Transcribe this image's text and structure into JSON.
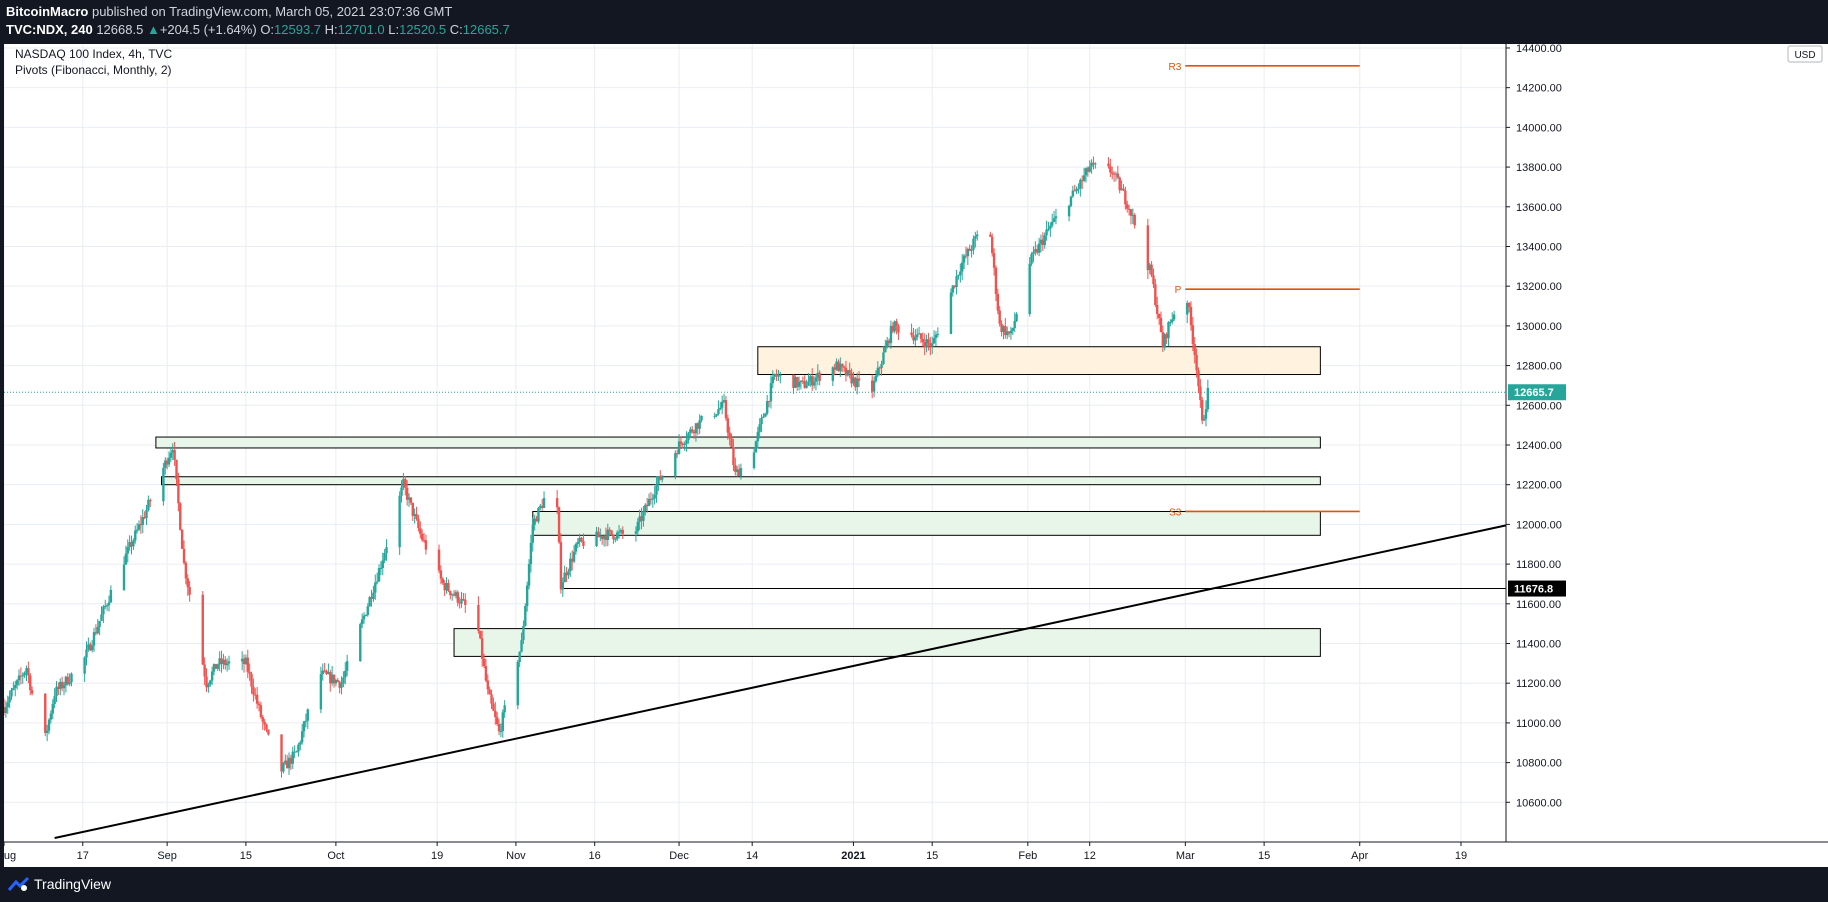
{
  "header": {
    "author": "BitcoinMacro",
    "published_text": "published on TradingView.com, March 05, 2021 23:07:36 GMT",
    "symbol": "TVC:NDX, 240",
    "last": "12668.5",
    "change_arrow": "▲",
    "change": "+204.5 (+1.64%)",
    "o_label": "O:",
    "o": "12593.7",
    "h_label": "H:",
    "h": "12701.0",
    "l_label": "L:",
    "l": "12520.5",
    "c_label": "C:",
    "c": "12665.7"
  },
  "legend": {
    "title": "NASDAQ 100 Index, 4h, TVC",
    "indicator": "Pivots (Fibonacci, Monthly, 2)"
  },
  "footer": {
    "brand": "TradingView",
    "logo_icon": "tradingview-logo-icon"
  },
  "colors": {
    "up": "#26a69a",
    "down": "#ef5350",
    "pivot": "#e65100",
    "zone_green": "#e8f5e9",
    "zone_orange": "#fff3e0",
    "price_tag": "#26a69a"
  },
  "chart_data": {
    "type": "candlestick",
    "title": "NASDAQ 100 Index, 4h, TVC",
    "currency": "USD",
    "ylim": [
      10400,
      14420
    ],
    "yticks": [
      10600,
      10800,
      11000,
      11200,
      11400,
      11600,
      11800,
      12000,
      12200,
      12400,
      12600,
      12800,
      13000,
      13200,
      13400,
      13600,
      13800,
      14000,
      14200,
      14400
    ],
    "xlim": [
      "2020-08-03",
      "2021-04-27"
    ],
    "xticks": [
      {
        "date": "2020-08-03",
        "label": "ug"
      },
      {
        "date": "2020-08-17",
        "label": "17"
      },
      {
        "date": "2020-09-01",
        "label": "Sep"
      },
      {
        "date": "2020-09-15",
        "label": "15"
      },
      {
        "date": "2020-10-01",
        "label": "Oct"
      },
      {
        "date": "2020-10-19",
        "label": "19"
      },
      {
        "date": "2020-11-02",
        "label": "Nov"
      },
      {
        "date": "2020-11-16",
        "label": "16"
      },
      {
        "date": "2020-12-01",
        "label": "Dec"
      },
      {
        "date": "2020-12-14",
        "label": "14"
      },
      {
        "date": "2021-01-01",
        "label": "2021"
      },
      {
        "date": "2021-01-15",
        "label": "15"
      },
      {
        "date": "2021-02-01",
        "label": "Feb"
      },
      {
        "date": "2021-02-12",
        "label": "12"
      },
      {
        "date": "2021-03-01",
        "label": "Mar"
      },
      {
        "date": "2021-03-15",
        "label": "15"
      },
      {
        "date": "2021-04-01",
        "label": "Apr"
      },
      {
        "date": "2021-04-19",
        "label": "19"
      }
    ],
    "last_price": "12665.7",
    "marked_level": {
      "value": 11676.8,
      "label": "11676.8",
      "from": "2020-11-10"
    },
    "pivots": [
      {
        "label": "R3",
        "value": 14310,
        "from": "2021-03-01",
        "to": "2021-04-01"
      },
      {
        "label": "P",
        "value": 13185,
        "from": "2021-03-01",
        "to": "2021-04-01"
      },
      {
        "label": "S3",
        "value": 12065,
        "from": "2021-03-01",
        "to": "2021-04-01"
      }
    ],
    "zones": [
      {
        "color": "orange",
        "from": "2020-12-15",
        "to": "2021-03-25",
        "low": 12755,
        "high": 12895
      },
      {
        "color": "green",
        "from": "2020-08-30",
        "to": "2021-03-25",
        "low": 12385,
        "high": 12440
      },
      {
        "color": "green",
        "from": "2020-08-31",
        "to": "2021-03-25",
        "low": 12200,
        "high": 12240
      },
      {
        "color": "green",
        "from": "2020-11-05",
        "to": "2021-03-25",
        "low": 11945,
        "high": 12065
      },
      {
        "color": "green",
        "from": "2020-10-22",
        "to": "2021-03-25",
        "low": 11335,
        "high": 11475
      }
    ],
    "trendline": {
      "from": {
        "date": "2020-08-12",
        "value": 10420
      },
      "to": {
        "date": "2021-04-27",
        "value": 11995
      }
    },
    "path": [
      [
        "2020-08-03",
        11080
      ],
      [
        "2020-08-07",
        11280
      ],
      [
        "2020-08-10",
        10880
      ],
      [
        "2020-08-12",
        11150
      ],
      [
        "2020-08-17",
        11300
      ],
      [
        "2020-08-24",
        11800
      ],
      [
        "2020-08-28",
        12050
      ],
      [
        "2020-09-02",
        12400
      ],
      [
        "2020-09-04",
        11800
      ],
      [
        "2020-09-08",
        11200
      ],
      [
        "2020-09-10",
        11300
      ],
      [
        "2020-09-15",
        11300
      ],
      [
        "2020-09-18",
        11000
      ],
      [
        "2020-09-21",
        10750
      ],
      [
        "2020-09-24",
        10850
      ],
      [
        "2020-09-28",
        11250
      ],
      [
        "2020-10-02",
        11200
      ],
      [
        "2020-10-05",
        11450
      ],
      [
        "2020-10-09",
        11800
      ],
      [
        "2020-10-13",
        12200
      ],
      [
        "2020-10-16",
        11950
      ],
      [
        "2020-10-20",
        11700
      ],
      [
        "2020-10-23",
        11620
      ],
      [
        "2020-10-26",
        11520
      ],
      [
        "2020-10-28",
        11150
      ],
      [
        "2020-10-30",
        10950
      ],
      [
        "2020-11-03",
        11400
      ],
      [
        "2020-11-05",
        12000
      ],
      [
        "2020-11-09",
        12250
      ],
      [
        "2020-11-10",
        11700
      ],
      [
        "2020-11-13",
        11900
      ],
      [
        "2020-11-18",
        11950
      ],
      [
        "2020-11-23",
        11950
      ],
      [
        "2020-11-27",
        12200
      ],
      [
        "2020-12-01",
        12400
      ],
      [
        "2020-12-04",
        12500
      ],
      [
        "2020-12-09",
        12600
      ],
      [
        "2020-12-11",
        12250
      ],
      [
        "2020-12-14",
        12350
      ],
      [
        "2020-12-18",
        12750
      ],
      [
        "2020-12-23",
        12700
      ],
      [
        "2020-12-29",
        12800
      ],
      [
        "2021-01-04",
        12650
      ],
      [
        "2021-01-08",
        13000
      ],
      [
        "2021-01-12",
        12950
      ],
      [
        "2021-01-15",
        12900
      ],
      [
        "2021-01-20",
        13300
      ],
      [
        "2021-01-25",
        13550
      ],
      [
        "2021-01-27",
        13000
      ],
      [
        "2021-01-29",
        12950
      ],
      [
        "2021-02-01",
        13300
      ],
      [
        "2021-02-05",
        13500
      ],
      [
        "2021-02-10",
        13700
      ],
      [
        "2021-02-12",
        13800
      ],
      [
        "2021-02-16",
        13780
      ],
      [
        "2021-02-19",
        13600
      ],
      [
        "2021-02-23",
        13250
      ],
      [
        "2021-02-25",
        12900
      ],
      [
        "2021-02-26",
        13000
      ],
      [
        "2021-03-01",
        13200
      ],
      [
        "2021-03-03",
        12800
      ],
      [
        "2021-03-04",
        12500
      ],
      [
        "2021-03-05",
        12665
      ]
    ]
  }
}
